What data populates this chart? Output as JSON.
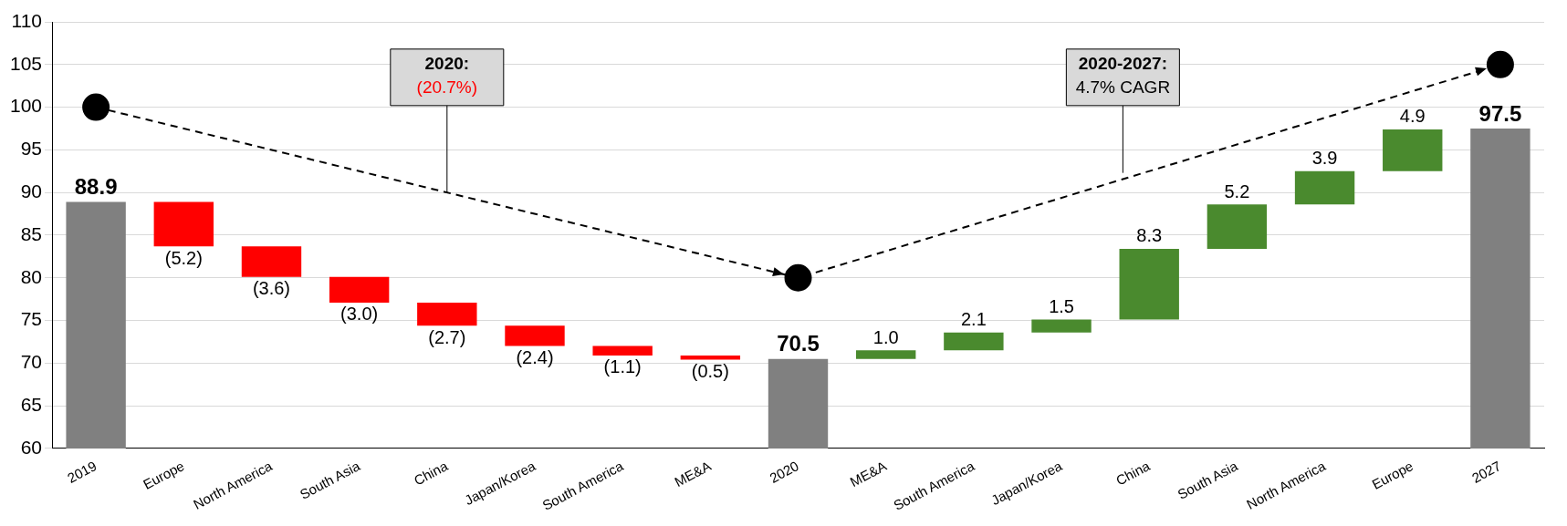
{
  "chart_data": {
    "type": "bar",
    "categories": [
      "2019",
      "Europe",
      "North America",
      "South Asia",
      "China",
      "Japan/Korea",
      "South America",
      "ME&A",
      "2020",
      "ME&A",
      "South America",
      "Japan/Korea",
      "China",
      "South Asia",
      "North America",
      "Europe",
      "2027"
    ],
    "series": [
      {
        "values": [
          88.9,
          -5.2,
          -3.6,
          -3.0,
          -2.7,
          -2.4,
          -1.1,
          -0.5,
          70.5,
          1.0,
          2.1,
          1.5,
          8.3,
          5.2,
          3.9,
          4.9,
          97.5
        ],
        "base": [
          null,
          88.9,
          83.7,
          80.1,
          77.1,
          74.4,
          72.0,
          70.9,
          null,
          70.5,
          71.5,
          73.6,
          75.1,
          83.4,
          88.6,
          92.5,
          null
        ],
        "colors": [
          "#808080",
          "#ff0000",
          "#ff0000",
          "#ff0000",
          "#ff0000",
          "#ff0000",
          "#ff0000",
          "#ff0000",
          "#808080",
          "#4a8a2e",
          "#4a8a2e",
          "#4a8a2e",
          "#4a8a2e",
          "#4a8a2e",
          "#4a8a2e",
          "#4a8a2e",
          "#808080"
        ],
        "value_labels": [
          "88.9",
          "(5.2)",
          "(3.6)",
          "(3.0)",
          "(2.7)",
          "(2.4)",
          "(1.1)",
          "(0.5)",
          "70.5",
          "1.0",
          "2.1",
          "1.5",
          "8.3",
          "5.2",
          "3.9",
          "4.9",
          "97.5"
        ]
      },
      {
        "type": "line",
        "values": [
          100,
          null,
          null,
          null,
          null,
          null,
          null,
          null,
          80,
          null,
          null,
          null,
          null,
          null,
          null,
          null,
          105
        ],
        "color": "#000000",
        "marker": "circle",
        "line_style": "dashed"
      }
    ],
    "ylim": [
      60,
      110
    ],
    "yticks": [
      60,
      65,
      70,
      75,
      80,
      85,
      90,
      95,
      100,
      105,
      110
    ],
    "grid": "y",
    "legend": false,
    "annotations": [
      {
        "text": "2020:\n(20.7%)",
        "x": "China",
        "y": 90
      },
      "2020-2027:\n4.7% CAGR"
    ]
  }
}
